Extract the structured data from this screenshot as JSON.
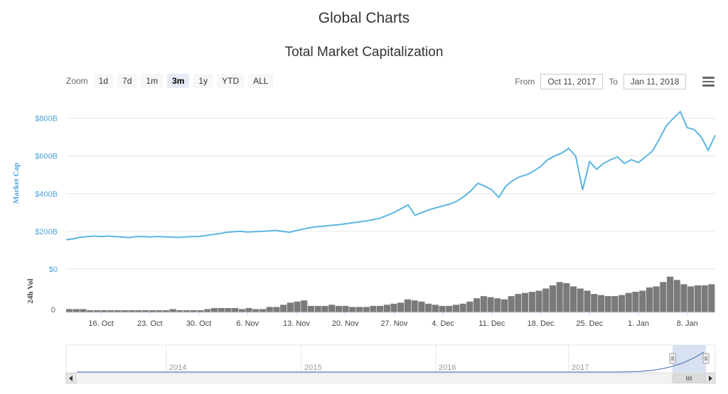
{
  "page": {
    "title": "Global Charts"
  },
  "zoom": {
    "label": "Zoom",
    "buttons": [
      "1d",
      "7d",
      "1m",
      "3m",
      "1y",
      "YTD",
      "ALL"
    ],
    "active": "3m"
  },
  "range": {
    "from_label": "From",
    "from_value": "Oct 11, 2017",
    "to_label": "To",
    "to_value": "Jan 11, 2018"
  },
  "icons": {
    "menu": "menu-icon",
    "scroll_left": "arrow-left-icon",
    "scroll_right": "arrow-right-icon",
    "scroll_grip": "grip-icon",
    "navigator_handle": "handle-icon"
  },
  "colors": {
    "line": "#5BB5E0",
    "volume": "#7A7A7A",
    "navigator_fill": "#C9D7EE",
    "navigator_line": "#3F63B0",
    "axis_label": "#4EA5D8"
  },
  "chart_data": {
    "type": "line",
    "title": "Total Market Capitalization",
    "ylabel": "Market Cap",
    "ylim": [
      0,
      900
    ],
    "y_ticks": [
      "$0",
      "$200B",
      "$400B",
      "$600B",
      "$800B"
    ],
    "y_tick_values": [
      0,
      200,
      400,
      600,
      800
    ],
    "x_ticks": [
      "16. Oct",
      "23. Oct",
      "30. Oct",
      "6. Nov",
      "13. Nov",
      "20. Nov",
      "27. Nov",
      "4. Dec",
      "11. Dec",
      "18. Dec",
      "25. Dec",
      "1. Jan",
      "8. Jan"
    ],
    "x_tick_days": [
      5,
      12,
      19,
      26,
      33,
      40,
      47,
      54,
      61,
      68,
      75,
      82,
      89
    ],
    "grid": true,
    "series": [
      {
        "name": "Market Cap",
        "unit": "B USD",
        "points": [
          [
            0,
            155
          ],
          [
            1,
            160
          ],
          [
            2,
            168
          ],
          [
            3,
            172
          ],
          [
            4,
            175
          ],
          [
            5,
            172
          ],
          [
            6,
            175
          ],
          [
            7,
            172
          ],
          [
            8,
            170
          ],
          [
            9,
            167
          ],
          [
            10,
            172
          ],
          [
            11,
            173
          ],
          [
            12,
            170
          ],
          [
            13,
            173
          ],
          [
            14,
            171
          ],
          [
            15,
            170
          ],
          [
            16,
            168
          ],
          [
            17,
            170
          ],
          [
            18,
            172
          ],
          [
            19,
            173
          ],
          [
            20,
            178
          ],
          [
            21,
            183
          ],
          [
            22,
            188
          ],
          [
            23,
            195
          ],
          [
            24,
            198
          ],
          [
            25,
            200
          ],
          [
            26,
            197
          ],
          [
            27,
            198
          ],
          [
            28,
            200
          ],
          [
            29,
            202
          ],
          [
            30,
            205
          ],
          [
            31,
            200
          ],
          [
            32,
            195
          ],
          [
            33,
            205
          ],
          [
            34,
            212
          ],
          [
            35,
            220
          ],
          [
            36,
            225
          ],
          [
            37,
            228
          ],
          [
            38,
            232
          ],
          [
            39,
            235
          ],
          [
            40,
            240
          ],
          [
            41,
            245
          ],
          [
            42,
            250
          ],
          [
            43,
            255
          ],
          [
            44,
            262
          ],
          [
            45,
            270
          ],
          [
            46,
            285
          ],
          [
            47,
            300
          ],
          [
            48,
            320
          ],
          [
            49,
            340
          ],
          [
            50,
            285
          ],
          [
            51,
            300
          ],
          [
            52,
            315
          ],
          [
            53,
            325
          ],
          [
            54,
            335
          ],
          [
            55,
            345
          ],
          [
            56,
            360
          ],
          [
            57,
            385
          ],
          [
            58,
            415
          ],
          [
            59,
            455
          ],
          [
            60,
            440
          ],
          [
            61,
            420
          ],
          [
            62,
            380
          ],
          [
            63,
            440
          ],
          [
            64,
            470
          ],
          [
            65,
            490
          ],
          [
            66,
            500
          ],
          [
            67,
            520
          ],
          [
            68,
            545
          ],
          [
            69,
            580
          ],
          [
            70,
            600
          ],
          [
            71,
            615
          ],
          [
            72,
            640
          ],
          [
            73,
            600
          ],
          [
            74,
            420
          ],
          [
            75,
            570
          ],
          [
            76,
            530
          ],
          [
            77,
            560
          ],
          [
            78,
            580
          ],
          [
            79,
            595
          ],
          [
            80,
            560
          ],
          [
            81,
            580
          ],
          [
            82,
            565
          ],
          [
            83,
            595
          ],
          [
            84,
            625
          ],
          [
            85,
            690
          ],
          [
            86,
            760
          ],
          [
            87,
            800
          ],
          [
            88,
            835
          ],
          [
            89,
            750
          ],
          [
            90,
            740
          ],
          [
            91,
            700
          ],
          [
            92,
            630
          ],
          [
            93,
            710
          ]
        ]
      },
      {
        "name": "24h Vol",
        "unit": "B USD",
        "ylabel": "24h Vol",
        "ylim": [
          0,
          40
        ],
        "y_ticks": [
          "0"
        ],
        "values": [
          3,
          3,
          3,
          2,
          2,
          2,
          2,
          2,
          2,
          2,
          2,
          2,
          2,
          2,
          2,
          3,
          2,
          2,
          2,
          2,
          3,
          4,
          4,
          4,
          4,
          3,
          4,
          3,
          3,
          5,
          5,
          7,
          9,
          10,
          11,
          6,
          6,
          6,
          7,
          6,
          6,
          5,
          5,
          5,
          6,
          6,
          7,
          8,
          9,
          12,
          11,
          10,
          8,
          7,
          6,
          6,
          7,
          8,
          10,
          13,
          15,
          14,
          13,
          12,
          15,
          17,
          18,
          19,
          20,
          22,
          25,
          28,
          27,
          24,
          22,
          20,
          17,
          16,
          15,
          15,
          16,
          18,
          19,
          20,
          23,
          24,
          28,
          33,
          30,
          26,
          24,
          25,
          25,
          26
        ]
      }
    ],
    "navigator": {
      "x_ticks": [
        "2014",
        "2015",
        "2016",
        "2017"
      ],
      "selected_range": [
        "Oct 11, 2017",
        "Jan 11, 2018"
      ]
    }
  }
}
